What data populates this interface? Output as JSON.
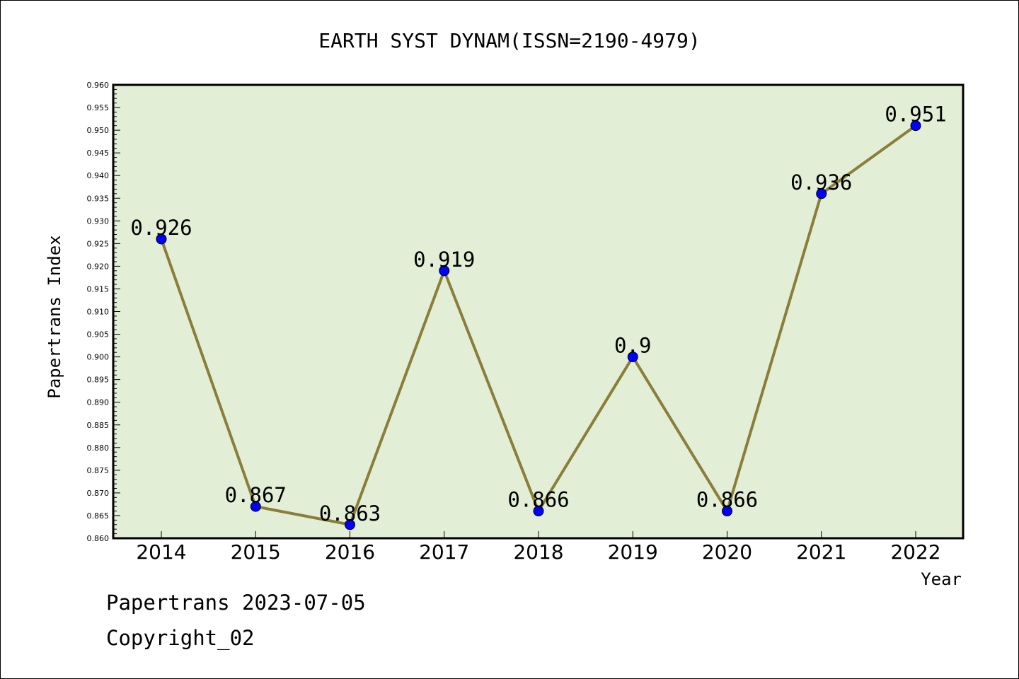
{
  "chart_data": {
    "type": "line",
    "title": "EARTH SYST DYNAM(ISSN=2190-4979)",
    "xlabel": "Year",
    "ylabel": "Papertrans Index",
    "categories": [
      "2014",
      "2015",
      "2016",
      "2017",
      "2018",
      "2019",
      "2020",
      "2021",
      "2022"
    ],
    "values": [
      0.926,
      0.867,
      0.863,
      0.919,
      0.866,
      0.9,
      0.866,
      0.936,
      0.951
    ],
    "data_labels": [
      "0.926",
      "0.867",
      "0.863",
      "0.919",
      "0.866",
      "0.9",
      "0.866",
      "0.936",
      "0.951"
    ],
    "ylim": [
      0.86,
      0.96
    ],
    "yticks": [
      "0.860",
      "0.865",
      "0.870",
      "0.875",
      "0.880",
      "0.885",
      "0.890",
      "0.895",
      "0.900",
      "0.905",
      "0.910",
      "0.915",
      "0.920",
      "0.925",
      "0.930",
      "0.935",
      "0.940",
      "0.945",
      "0.950",
      "0.955",
      "0.960"
    ],
    "grid": false,
    "colors": {
      "plot_background": "#e2efd6",
      "line": "#8b7d3a",
      "marker": "#0000ff"
    }
  },
  "footer": {
    "line1": "Papertrans 2023-07-05",
    "line2": "Copyright_02"
  }
}
